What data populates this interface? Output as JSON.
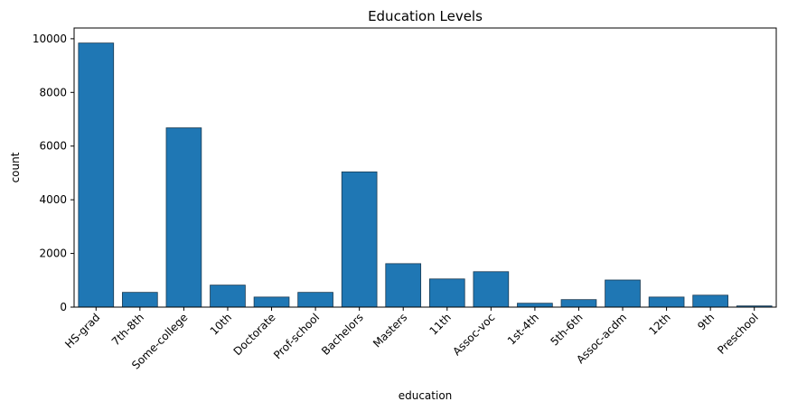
{
  "chart_data": {
    "type": "bar",
    "title": "Education Levels",
    "xlabel": "education",
    "ylabel": "count",
    "categories": [
      "HS-grad",
      "7th-8th",
      "Some-college",
      "10th",
      "Doctorate",
      "Prof-school",
      "Bachelors",
      "Masters",
      "11th",
      "Assoc-voc",
      "1st-4th",
      "5th-6th",
      "Assoc-acdm",
      "12th",
      "9th",
      "Preschool"
    ],
    "values": [
      9840,
      550,
      6680,
      820,
      375,
      550,
      5040,
      1620,
      1050,
      1320,
      145,
      280,
      1010,
      375,
      445,
      45
    ],
    "ylim": [
      0,
      10400
    ],
    "yticks": [
      0,
      2000,
      4000,
      6000,
      8000,
      10000
    ],
    "bar_color": "#1f77b4",
    "bar_edge_color": "#1a3a52",
    "grid": false,
    "legend": false
  }
}
